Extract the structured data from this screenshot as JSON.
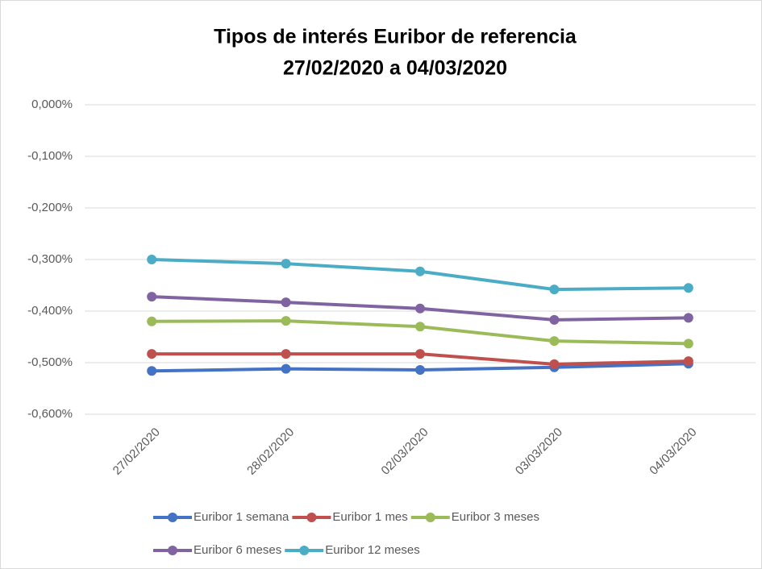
{
  "chart_data": {
    "type": "line",
    "title": "Tipos de interés Euribor de referencia",
    "subtitle": "27/02/2020 a 04/03/2020",
    "categories": [
      "27/02/2020",
      "28/02/2020",
      "02/03/2020",
      "03/03/2020",
      "04/03/2020"
    ],
    "series": [
      {
        "name": "Euribor 1 semana",
        "color": "#4472c4",
        "values": [
          -0.516,
          -0.512,
          -0.514,
          -0.509,
          -0.502
        ]
      },
      {
        "name": "Euribor 1 mes",
        "color": "#c0504d",
        "values": [
          -0.483,
          -0.483,
          -0.483,
          -0.503,
          -0.497
        ]
      },
      {
        "name": "Euribor 3 meses",
        "color": "#9bbb59",
        "values": [
          -0.42,
          -0.419,
          -0.43,
          -0.458,
          -0.463
        ]
      },
      {
        "name": "Euribor 6 meses",
        "color": "#8064a2",
        "values": [
          -0.372,
          -0.383,
          -0.395,
          -0.417,
          -0.413
        ]
      },
      {
        "name": "Euribor 12 meses",
        "color": "#4bacc6",
        "values": [
          -0.3,
          -0.308,
          -0.323,
          -0.358,
          -0.355
        ]
      }
    ],
    "ylim": [
      -0.6,
      0
    ],
    "yticks": [
      {
        "value": 0,
        "label": "0,000%"
      },
      {
        "value": -0.1,
        "label": "-0,100%"
      },
      {
        "value": -0.2,
        "label": "-0,200%"
      },
      {
        "value": -0.3,
        "label": "-0,300%"
      },
      {
        "value": -0.4,
        "label": "-0,400%"
      },
      {
        "value": -0.5,
        "label": "-0,500%"
      },
      {
        "value": -0.6,
        "label": "-0,600%"
      }
    ],
    "grid": true,
    "legend": "bottom"
  }
}
